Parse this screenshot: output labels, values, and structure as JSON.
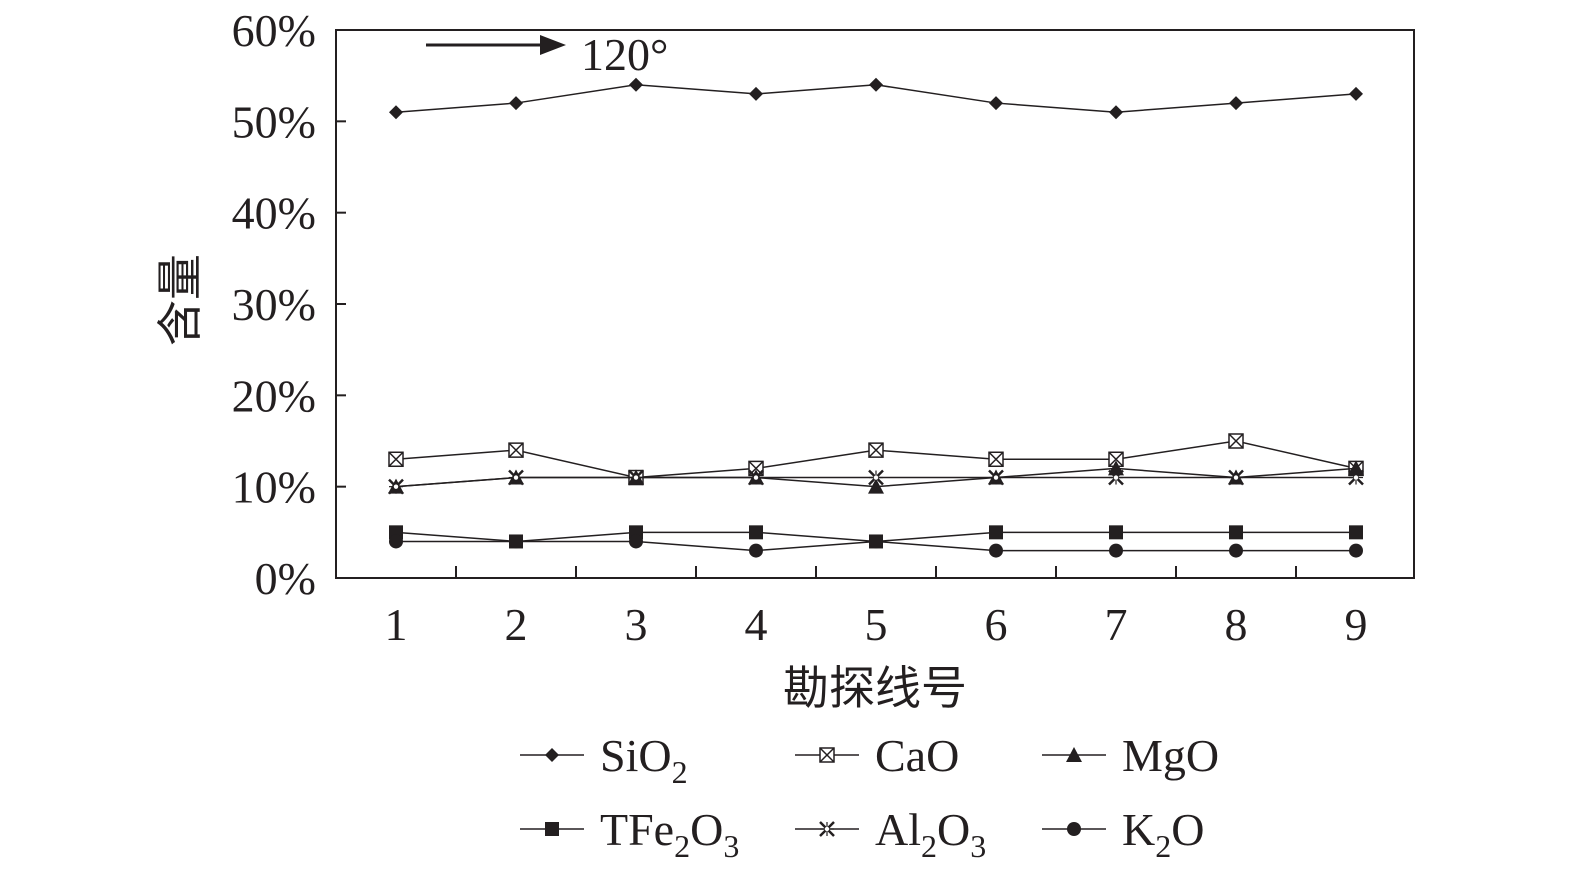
{
  "chart_data": {
    "type": "line",
    "categories": [
      "1",
      "2",
      "3",
      "4",
      "5",
      "6",
      "7",
      "8",
      "9"
    ],
    "xlabel": "勘探线号",
    "ylabel": "含量",
    "ylim": [
      0,
      60
    ],
    "y_ticks": [
      "0%",
      "10%",
      "20%",
      "30%",
      "40%",
      "50%",
      "60%"
    ],
    "annotation": "120°",
    "grid": false,
    "legend_position": "bottom",
    "series": [
      {
        "name": "SiO2",
        "label_main": "SiO",
        "label_sub": "2",
        "label_tail": "",
        "marker": "diamond",
        "values": [
          51,
          52,
          54,
          53,
          54,
          52,
          51,
          52,
          53
        ]
      },
      {
        "name": "CaO",
        "label_main": "CaO",
        "label_sub": "",
        "label_tail": "",
        "marker": "box-x",
        "values": [
          13,
          14,
          11,
          12,
          14,
          13,
          13,
          15,
          12
        ]
      },
      {
        "name": "MgO",
        "label_main": "MgO",
        "label_sub": "",
        "label_tail": "",
        "marker": "triangle",
        "values": [
          10,
          11,
          11,
          11,
          10,
          11,
          12,
          11,
          12
        ]
      },
      {
        "name": "TFe2O3",
        "label_main": "TFe",
        "label_sub": "2",
        "label_tail": "O",
        "label_sub2": "3",
        "marker": "square",
        "values": [
          5,
          4,
          5,
          5,
          4,
          5,
          5,
          5,
          5
        ]
      },
      {
        "name": "Al2O3",
        "label_main": "Al",
        "label_sub": "2",
        "label_tail": "O",
        "label_sub2": "3",
        "marker": "star",
        "values": [
          10,
          11,
          11,
          11,
          11,
          11,
          11,
          11,
          11
        ]
      },
      {
        "name": "K2O",
        "label_main": "K",
        "label_sub": "2",
        "label_tail": "O",
        "label_sub2": "",
        "marker": "circle",
        "values": [
          4,
          4,
          4,
          3,
          4,
          3,
          3,
          3,
          3
        ]
      }
    ],
    "colors": {
      "ink": "#231f20",
      "background": "#ffffff"
    }
  }
}
